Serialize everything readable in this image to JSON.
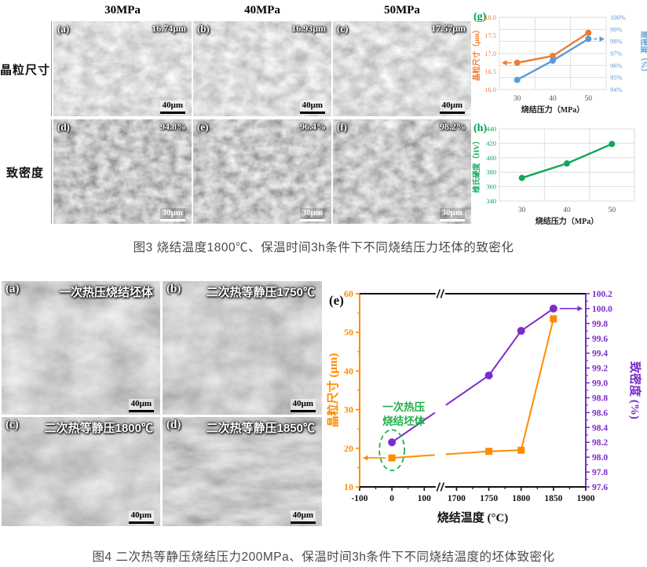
{
  "figure3": {
    "column_headers": [
      "30MPa",
      "40MPa",
      "50MPa"
    ],
    "row_labels": [
      "晶粒尺寸",
      "致密度"
    ],
    "micrographs": [
      {
        "label": "(a)",
        "value": "16.74μm",
        "scale": "40μm"
      },
      {
        "label": "(b)",
        "value": "16.93μm",
        "scale": "40μm"
      },
      {
        "label": "(c)",
        "value": "17.57μm",
        "scale": "40μm"
      },
      {
        "label": "(d)",
        "value": "94.8%",
        "scale": "30μm"
      },
      {
        "label": "(e)",
        "value": "96.4%",
        "scale": "30μm"
      },
      {
        "label": "(f)",
        "value": "98.2%",
        "scale": "30μm"
      }
    ],
    "caption": "图3  烧结温度1800℃、保温时间3h条件下不同烧结压力坯体的致密化"
  },
  "figure4": {
    "micrographs": [
      {
        "label": "(a)",
        "title": "一次热压烧结坯体",
        "scale": "40μm"
      },
      {
        "label": "(b)",
        "title": "二次热等静压1750℃",
        "scale": "40μm"
      },
      {
        "label": "(c)",
        "title": "二次热等静压1800℃",
        "scale": "40μm"
      },
      {
        "label": "(d)",
        "title": "二次热等静压1850℃",
        "scale": "40μm"
      }
    ],
    "caption": "图4  二次热等静压烧结压力200MPa、保温时间3h条件下不同烧结温度的坯体致密化"
  },
  "chart_data": [
    {
      "id": "g",
      "type": "line",
      "panel_label": "(g)",
      "panel_color": "#00A04A",
      "x": [
        30,
        40,
        50
      ],
      "xlabel": "烧结压力（MPa）",
      "grid": true,
      "left_axis": {
        "label": "晶粒尺寸（μm）",
        "min": 16,
        "max": 18,
        "step": 0.5,
        "color": "#ED7D31"
      },
      "right_axis": {
        "label": "致密度（%）",
        "min": 94,
        "max": 100,
        "step": 1,
        "suffix": "%",
        "color": "#5B9BD5"
      },
      "series": [
        {
          "name": "晶粒尺寸",
          "axis": "left",
          "color": "#ED7D31",
          "values": [
            16.74,
            16.93,
            17.57
          ],
          "arrow": "left"
        },
        {
          "name": "致密度",
          "axis": "right",
          "color": "#5B9BD5",
          "values": [
            94.8,
            96.4,
            98.2
          ],
          "arrow": "right",
          "arrow_dash": true
        }
      ]
    },
    {
      "id": "h",
      "type": "line",
      "panel_label": "(h)",
      "panel_color": "#00A04A",
      "x": [
        30,
        40,
        50
      ],
      "xlabel": "烧结压力（MPa）",
      "grid": true,
      "left_axis": {
        "label": "维氏硬度（HV）",
        "min": 340,
        "max": 440,
        "step": 20,
        "color": "#10A85B"
      },
      "series": [
        {
          "name": "维氏硬度",
          "axis": "left",
          "color": "#10A85B",
          "values": [
            372,
            392,
            419
          ]
        }
      ]
    },
    {
      "id": "e",
      "type": "line-broken-axis",
      "panel_label": "(e)",
      "xlabel": "烧结温度 (°C)",
      "x_ticks": [
        -100,
        0,
        100,
        1700,
        1750,
        1800,
        1850,
        1900
      ],
      "axis_break_between": [
        100,
        1700
      ],
      "left_axis": {
        "label": "晶粒尺寸 (μm)",
        "min": 10,
        "max": 60,
        "step": 10,
        "color": "#FF8C00"
      },
      "right_axis": {
        "label": "致密度 (%)",
        "min": 97.6,
        "max": 100.2,
        "step": 0.2,
        "color": "#7B2CCE"
      },
      "series": [
        {
          "name": "晶粒尺寸",
          "axis": "left",
          "marker": "square",
          "color": "#FF8C00",
          "points": [
            [
              0,
              17.5
            ],
            [
              1750,
              19.2
            ],
            [
              1800,
              19.5
            ],
            [
              1850,
              53.5
            ]
          ],
          "arrow": "left"
        },
        {
          "name": "致密度",
          "axis": "right",
          "marker": "circle",
          "color": "#7B2CCE",
          "points": [
            [
              0,
              98.2
            ],
            [
              1750,
              99.1
            ],
            [
              1800,
              99.7
            ],
            [
              1850,
              100.0
            ]
          ],
          "arrow": "right"
        }
      ],
      "annotation": {
        "text_lines": [
          "一次热压",
          "烧结坯体"
        ],
        "color": "#22B14C"
      }
    }
  ]
}
